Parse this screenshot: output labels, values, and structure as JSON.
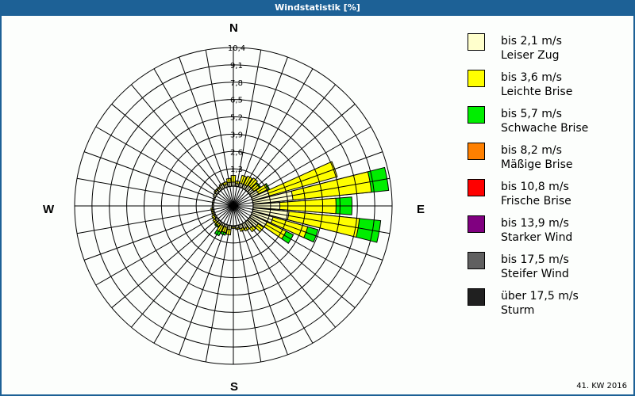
{
  "window": {
    "title": "Windstatistik [%]"
  },
  "compass": {
    "n": "N",
    "e": "E",
    "s": "S",
    "w": "W"
  },
  "footer": {
    "period": "41. KW 2016"
  },
  "legend": [
    {
      "color": "#ffffcc",
      "speed": "bis 2,1 m/s",
      "name": "Leiser Zug"
    },
    {
      "color": "#ffff00",
      "speed": "bis 3,6 m/s",
      "name": "Leichte Brise"
    },
    {
      "color": "#00ee00",
      "speed": "bis 5,7 m/s",
      "name": "Schwache Brise"
    },
    {
      "color": "#ff8000",
      "speed": "bis 8,2 m/s",
      "name": "Mäßige Brise"
    },
    {
      "color": "#ff0000",
      "speed": "bis 10,8 m/s",
      "name": "Frische Brise"
    },
    {
      "color": "#800080",
      "speed": "bis 13,9 m/s",
      "name": "Starker Wind"
    },
    {
      "color": "#606060",
      "speed": "bis 17,5 m/s",
      "name": "Steifer Wind"
    },
    {
      "color": "#202020",
      "speed": "über 17,5 m/s",
      "name": "Sturm"
    }
  ],
  "chart_data": {
    "type": "wind_rose",
    "title": "Windstatistik [%]",
    "unit": "%",
    "period": "41. KW 2016",
    "radial_ticks": [
      "1,3",
      "2,6",
      "3,9",
      "5,2",
      "6,5",
      "7,8",
      "9,1",
      "10,4"
    ],
    "radial_max": 10.4,
    "sector_step_deg": 10,
    "directions": [
      "N",
      "E",
      "S",
      "W"
    ],
    "speed_classes": [
      "bis 2,1 m/s",
      "bis 3,6 m/s",
      "bis 5,7 m/s",
      "bis 8,2 m/s",
      "bis 10,8 m/s",
      "bis 13,9 m/s",
      "bis 17,5 m/s",
      "über 17,5 m/s"
    ],
    "sectors": [
      {
        "dir_deg": 0,
        "cum": [
          0.3,
          0.8
        ]
      },
      {
        "dir_deg": 10,
        "cum": [
          0.2,
          0.4
        ]
      },
      {
        "dir_deg": 20,
        "cum": [
          0.3,
          0.9
        ]
      },
      {
        "dir_deg": 30,
        "cum": [
          0.3,
          1.0
        ]
      },
      {
        "dir_deg": 40,
        "cum": [
          0.4,
          1.1
        ]
      },
      {
        "dir_deg": 50,
        "cum": [
          0.4,
          0.9,
          1.0
        ]
      },
      {
        "dir_deg": 60,
        "cum": [
          0.6,
          1.4,
          1.5
        ]
      },
      {
        "dir_deg": 70,
        "cum": [
          1.3,
          6.6
        ]
      },
      {
        "dir_deg": 80,
        "cum": [
          3.0,
          8.9,
          10.2
        ]
      },
      {
        "dir_deg": 90,
        "cum": [
          2.0,
          6.2,
          7.4
        ]
      },
      {
        "dir_deg": 100,
        "cum": [
          2.7,
          8.0,
          9.6
        ]
      },
      {
        "dir_deg": 110,
        "cum": [
          1.6,
          4.3,
          5.1
        ]
      },
      {
        "dir_deg": 120,
        "cum": [
          1.3,
          2.9,
          3.5
        ]
      },
      {
        "dir_deg": 130,
        "cum": [
          0.8,
          1.3
        ]
      },
      {
        "dir_deg": 140,
        "cum": [
          0.6,
          0.9
        ]
      },
      {
        "dir_deg": 150,
        "cum": [
          0.4,
          0.6
        ]
      },
      {
        "dir_deg": 160,
        "cum": [
          0.3,
          0.5
        ]
      },
      {
        "dir_deg": 170,
        "cum": [
          0.2,
          0.3
        ]
      },
      {
        "dir_deg": 180,
        "cum": [
          0.1,
          0.2
        ]
      },
      {
        "dir_deg": 190,
        "cum": [
          0.3,
          0.7
        ]
      },
      {
        "dir_deg": 200,
        "cum": [
          0.2,
          0.6,
          0.8
        ]
      },
      {
        "dir_deg": 210,
        "cum": [
          0.2,
          0.7,
          1.0
        ]
      },
      {
        "dir_deg": 220,
        "cum": [
          0.2,
          0.4,
          0.5
        ]
      },
      {
        "dir_deg": 230,
        "cum": [
          0.2,
          0.4
        ]
      },
      {
        "dir_deg": 240,
        "cum": [
          0.1,
          0.3
        ]
      },
      {
        "dir_deg": 250,
        "cum": [
          0.1,
          0.2
        ]
      },
      {
        "dir_deg": 260,
        "cum": [
          0.1,
          0.2
        ]
      },
      {
        "dir_deg": 270,
        "cum": [
          0.1,
          0.1
        ]
      },
      {
        "dir_deg": 280,
        "cum": [
          0.1,
          0.1
        ]
      },
      {
        "dir_deg": 290,
        "cum": [
          0.1,
          0.1
        ]
      },
      {
        "dir_deg": 300,
        "cum": [
          0.2,
          0.2
        ]
      },
      {
        "dir_deg": 310,
        "cum": [
          0.2,
          0.3
        ]
      },
      {
        "dir_deg": 320,
        "cum": [
          0.2,
          0.3
        ]
      },
      {
        "dir_deg": 330,
        "cum": [
          0.3,
          0.4
        ]
      },
      {
        "dir_deg": 340,
        "cum": [
          0.2,
          0.4
        ]
      },
      {
        "dir_deg": 350,
        "cum": [
          0.3,
          0.6
        ]
      }
    ]
  }
}
